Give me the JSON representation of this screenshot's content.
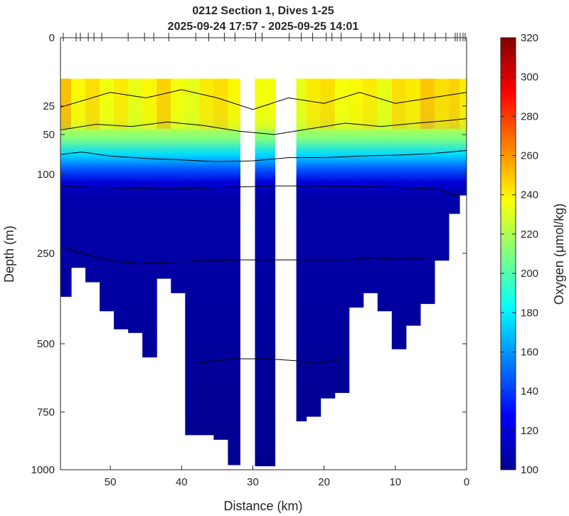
{
  "chart_data": {
    "type": "heatmap",
    "title": [
      "0212 Section 1, Dives 1-25",
      "2025-09-24 17:57 - 2025-09-25 14:01"
    ],
    "xlabel": "Distance (km)",
    "ylabel": "Depth (m)",
    "colorbar_label": "Oxygen (μmol/kg)",
    "xlim": [
      57,
      0
    ],
    "x_reversed": true,
    "xticks": [
      50,
      40,
      30,
      20,
      10,
      0
    ],
    "yticks": [
      0,
      25,
      50,
      100,
      250,
      500,
      750,
      1000
    ],
    "y_scale": "piecewise",
    "clim": [
      100,
      320
    ],
    "cticks": [
      100,
      120,
      140,
      160,
      180,
      200,
      220,
      240,
      260,
      280,
      300,
      320
    ],
    "colormap": "jet",
    "grid": false,
    "dive_distances_km": [
      56.6,
      54.8,
      54.2,
      53.1,
      52.3,
      51.2,
      47.5,
      45.2,
      43.9,
      41.8,
      38.0,
      36.2,
      34.0,
      32.5,
      29.6,
      28.7,
      24.9,
      23.2,
      21.6,
      19.7,
      18.9,
      17.6,
      14.8,
      13.0,
      12.2,
      10.8,
      8.9,
      7.3,
      6.0,
      4.4,
      2.9,
      1.6,
      1.3,
      0.9,
      0.5,
      0.2
    ],
    "profiles": [
      {
        "distance_km": 56.5,
        "max_depth_m": 370,
        "surface_oxygen": 262
      },
      {
        "distance_km": 54.5,
        "max_depth_m": 290,
        "surface_oxygen": 240
      },
      {
        "distance_km": 52.5,
        "max_depth_m": 330,
        "surface_oxygen": 250
      },
      {
        "distance_km": 50.5,
        "max_depth_m": 410,
        "surface_oxygen": 235
      },
      {
        "distance_km": 48.5,
        "max_depth_m": 460,
        "surface_oxygen": 245
      },
      {
        "distance_km": 46.5,
        "max_depth_m": 470,
        "surface_oxygen": 230
      },
      {
        "distance_km": 44.5,
        "max_depth_m": 550,
        "surface_oxygen": 240
      },
      {
        "distance_km": 42.5,
        "max_depth_m": 320,
        "surface_oxygen": 255
      },
      {
        "distance_km": 40.5,
        "max_depth_m": 360,
        "surface_oxygen": 235
      },
      {
        "distance_km": 38.5,
        "max_depth_m": 850,
        "surface_oxygen": 230
      },
      {
        "distance_km": 36.5,
        "max_depth_m": 850,
        "surface_oxygen": 245
      },
      {
        "distance_km": 34.5,
        "max_depth_m": 870,
        "surface_oxygen": 250
      },
      {
        "distance_km": 32.5,
        "max_depth_m": 980,
        "surface_oxygen": 240
      },
      {
        "distance_km": 28.7,
        "max_depth_m": 985,
        "surface_oxygen": 235
      },
      {
        "distance_km": 23.5,
        "max_depth_m": 790,
        "surface_oxygen": 230
      },
      {
        "distance_km": 21.5,
        "max_depth_m": 770,
        "surface_oxygen": 245
      },
      {
        "distance_km": 19.5,
        "max_depth_m": 700,
        "surface_oxygen": 250
      },
      {
        "distance_km": 17.5,
        "max_depth_m": 680,
        "surface_oxygen": 235
      },
      {
        "distance_km": 15.5,
        "max_depth_m": 400,
        "surface_oxygen": 240
      },
      {
        "distance_km": 13.5,
        "max_depth_m": 360,
        "surface_oxygen": 245
      },
      {
        "distance_km": 11.5,
        "max_depth_m": 410,
        "surface_oxygen": 230
      },
      {
        "distance_km": 9.5,
        "max_depth_m": 520,
        "surface_oxygen": 250
      },
      {
        "distance_km": 7.5,
        "max_depth_m": 450,
        "surface_oxygen": 245
      },
      {
        "distance_km": 5.5,
        "max_depth_m": 390,
        "surface_oxygen": 260
      },
      {
        "distance_km": 3.5,
        "max_depth_m": 270,
        "surface_oxygen": 250
      },
      {
        "distance_km": 1.5,
        "max_depth_m": 175,
        "surface_oxygen": 255
      },
      {
        "distance_km": 0.5,
        "max_depth_m": 140,
        "surface_oxygen": 245
      }
    ],
    "contours": [
      {
        "level": 240,
        "depths_m": [
          [
            57,
            26
          ],
          [
            50,
            20
          ],
          [
            45,
            22
          ],
          [
            40,
            19
          ],
          [
            35,
            22
          ],
          [
            30,
            28
          ],
          [
            25,
            22
          ],
          [
            20,
            24
          ],
          [
            15,
            20
          ],
          [
            10,
            24
          ],
          [
            5,
            22
          ],
          [
            0,
            20
          ]
        ]
      },
      {
        "level": 200,
        "depths_m": [
          [
            57,
            46
          ],
          [
            52,
            41
          ],
          [
            47,
            43
          ],
          [
            42,
            39
          ],
          [
            37,
            42
          ],
          [
            32,
            47
          ],
          [
            27,
            50
          ],
          [
            22,
            45
          ],
          [
            17,
            40
          ],
          [
            12,
            43
          ],
          [
            7,
            40
          ],
          [
            3,
            38
          ],
          [
            0,
            36
          ]
        ]
      },
      {
        "level": 150,
        "depths_m": [
          [
            57,
            75
          ],
          [
            54,
            72
          ],
          [
            50,
            77
          ],
          [
            45,
            80
          ],
          [
            40,
            82
          ],
          [
            35,
            84
          ],
          [
            30,
            83
          ],
          [
            25,
            79
          ],
          [
            20,
            79
          ],
          [
            15,
            77
          ],
          [
            10,
            76
          ],
          [
            5,
            74
          ],
          [
            0,
            70
          ]
        ]
      },
      {
        "level": 120,
        "depths_m": [
          [
            57,
            122
          ],
          [
            52,
            125
          ],
          [
            47,
            126
          ],
          [
            42,
            128
          ],
          [
            37,
            126
          ],
          [
            32,
            124
          ],
          [
            27,
            122
          ],
          [
            22,
            122
          ],
          [
            17,
            123
          ],
          [
            12,
            124
          ],
          [
            7,
            126
          ],
          [
            4,
            128
          ],
          [
            2,
            138
          ],
          [
            1,
            140
          ]
        ]
      },
      {
        "level": 110,
        "depths_m": [
          [
            56.5,
            238
          ],
          [
            54,
            250
          ],
          [
            50,
            270
          ],
          [
            46,
            278
          ],
          [
            42,
            274
          ],
          [
            37,
            270
          ],
          [
            32,
            268
          ],
          [
            27,
            268
          ],
          [
            22,
            268
          ],
          [
            17,
            268
          ],
          [
            13,
            262
          ],
          [
            10,
            266
          ],
          [
            7,
            265
          ],
          [
            4,
            268
          ],
          [
            3.5,
            268
          ]
        ]
      },
      {
        "level": 105,
        "depths_m": [
          [
            38,
            572
          ],
          [
            33,
            555
          ],
          [
            28,
            555
          ],
          [
            24,
            562
          ],
          [
            21,
            572
          ],
          [
            18,
            560
          ],
          [
            17.5,
            556
          ]
        ]
      }
    ]
  }
}
